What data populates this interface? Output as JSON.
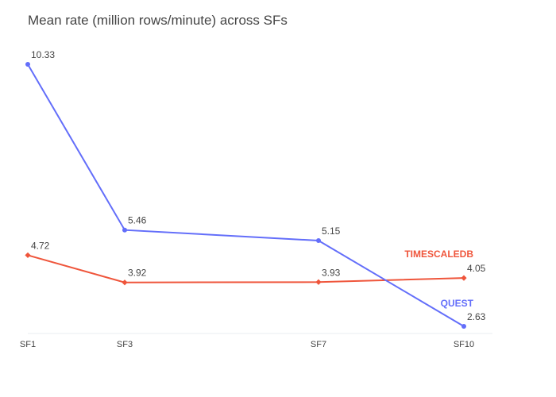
{
  "chart_data": {
    "type": "line",
    "title": "Mean rate (million rows/minute) across SFs",
    "xlabel": "",
    "ylabel": "",
    "categories": [
      "SF1",
      "SF3",
      "SF7",
      "SF10"
    ],
    "x": [
      1,
      3,
      7,
      10
    ],
    "ylim": [
      2.0,
      11.0
    ],
    "grid": false,
    "legend": "none",
    "series": [
      {
        "name": "QUEST",
        "color": "#636efa",
        "marker": "circle",
        "values": [
          10.33,
          5.46,
          5.15,
          2.63
        ],
        "labels": [
          "10.33",
          "5.46",
          "5.15",
          "2.63"
        ]
      },
      {
        "name": "TIMESCALEDB",
        "color": "#ef553b",
        "marker": "diamond",
        "values": [
          4.72,
          3.92,
          3.93,
          4.05
        ],
        "labels": [
          "4.72",
          "3.92",
          "3.93",
          "4.05"
        ]
      }
    ]
  }
}
